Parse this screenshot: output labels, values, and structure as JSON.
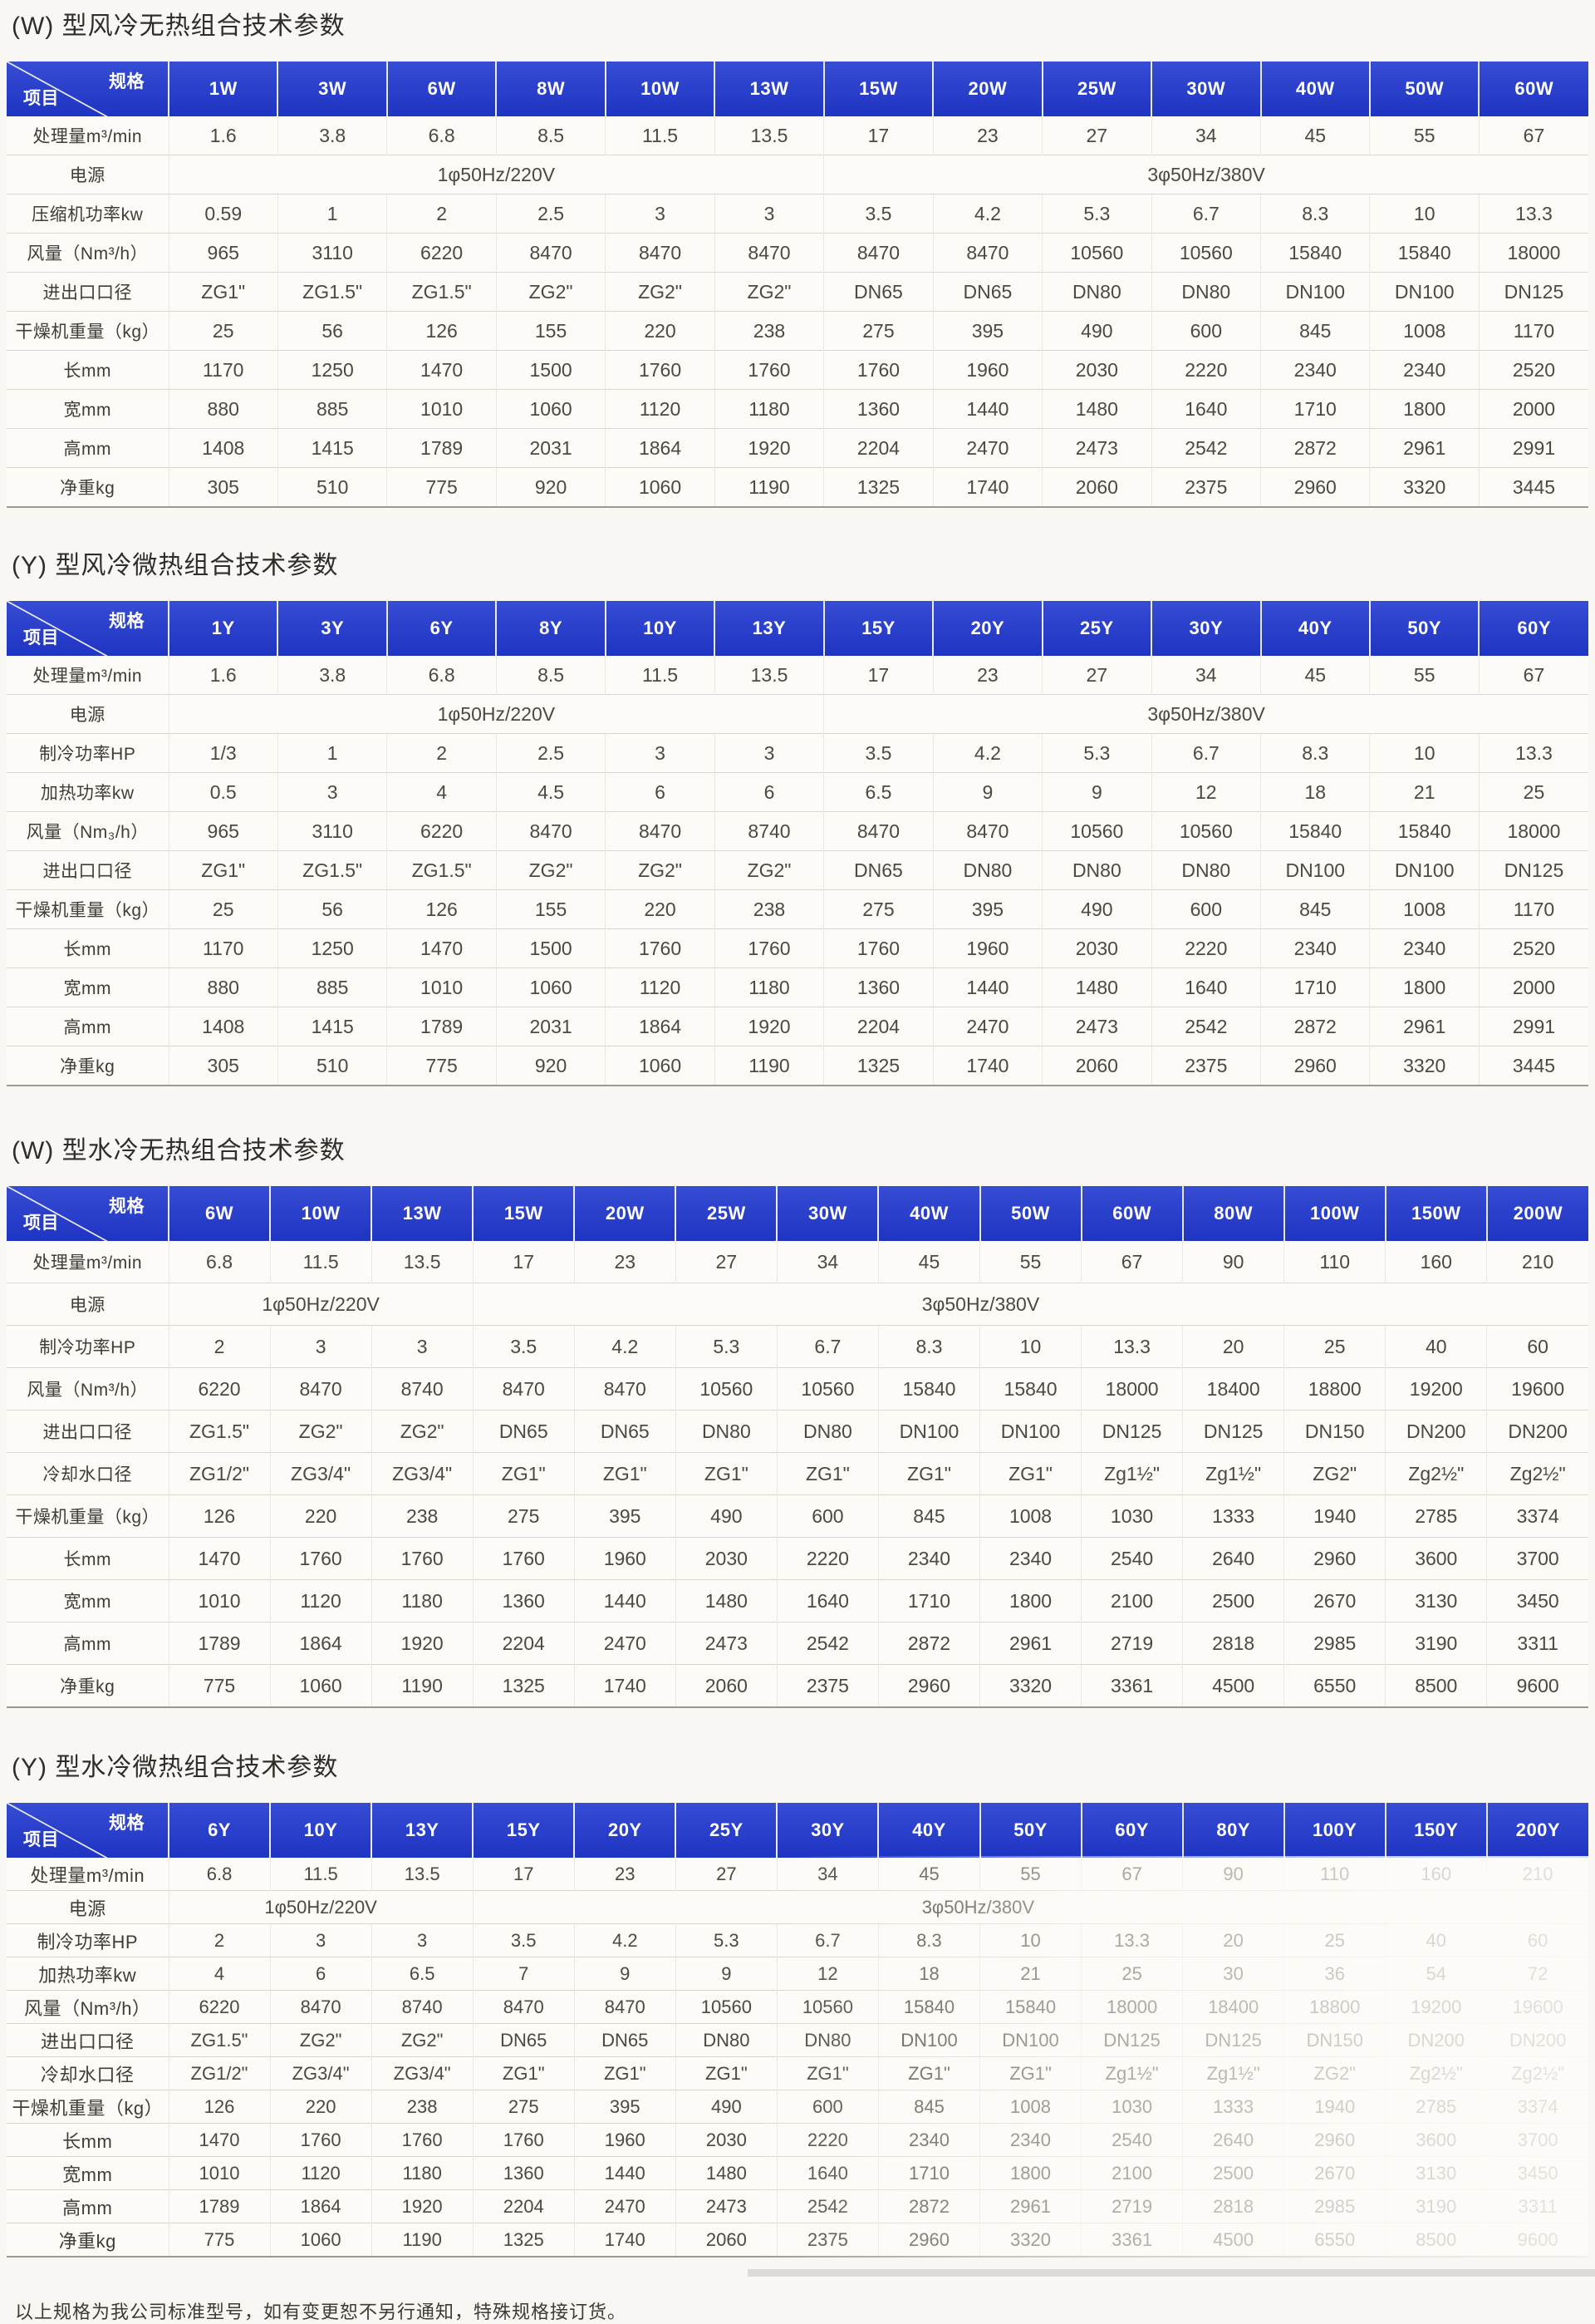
{
  "page": {
    "footer_note": "以上规格为我公司标准型号，如有变更恕不另行通知，特殊规格接订货。",
    "colors": {
      "header_blue": "#2038cf",
      "paper": "#f8f7f3",
      "table_bottom_rule": "#9a9992"
    }
  },
  "tables": [
    {
      "title": "(W) 型风冷无热组合技术参数",
      "corner": {
        "spec": "规格",
        "item": "项目"
      },
      "columns": [
        "1W",
        "3W",
        "6W",
        "8W",
        "10W",
        "13W",
        "15W",
        "20W",
        "25W",
        "30W",
        "40W",
        "50W",
        "60W"
      ],
      "rows": [
        {
          "label": "处理量m³/min",
          "values": [
            1.6,
            3.8,
            6.8,
            8.5,
            11.5,
            13.5,
            17,
            23,
            27,
            34,
            45,
            55,
            67
          ]
        },
        {
          "label": "电源",
          "power": [
            {
              "text": "1φ50Hz/220V",
              "span": 6
            },
            {
              "text": "3φ50Hz/380V",
              "span": 7
            }
          ]
        },
        {
          "label": "压缩机功率kw",
          "values": [
            0.59,
            1,
            2,
            2.5,
            3,
            3,
            3.5,
            4.2,
            5.3,
            6.7,
            8.3,
            10,
            13.3
          ]
        },
        {
          "label": "风量（Nm³/h）",
          "values": [
            965,
            3110,
            6220,
            8470,
            8470,
            8470,
            8470,
            8470,
            10560,
            10560,
            15840,
            15840,
            18000
          ]
        },
        {
          "label": "进出口口径",
          "values": [
            "ZG1\"",
            "ZG1.5\"",
            "ZG1.5\"",
            "ZG2\"",
            "ZG2\"",
            "ZG2\"",
            "DN65",
            "DN65",
            "DN80",
            "DN80",
            "DN100",
            "DN100",
            "DN125"
          ]
        },
        {
          "label": "干燥机重量（kg）",
          "values": [
            25,
            56,
            126,
            155,
            220,
            238,
            275,
            395,
            490,
            600,
            845,
            1008,
            1170
          ]
        },
        {
          "label": "长mm",
          "values": [
            1170,
            1250,
            1470,
            1500,
            1760,
            1760,
            1760,
            1960,
            2030,
            2220,
            2340,
            2340,
            2520
          ]
        },
        {
          "label": "宽mm",
          "values": [
            880,
            885,
            1010,
            1060,
            1120,
            1180,
            1360,
            1440,
            1480,
            1640,
            1710,
            1800,
            2000
          ]
        },
        {
          "label": "高mm",
          "values": [
            1408,
            1415,
            1789,
            2031,
            1864,
            1920,
            2204,
            2470,
            2473,
            2542,
            2872,
            2961,
            2991
          ]
        },
        {
          "label": "净重kg",
          "values": [
            305,
            510,
            775,
            920,
            1060,
            1190,
            1325,
            1740,
            2060,
            2375,
            2960,
            3320,
            3445
          ]
        }
      ]
    },
    {
      "title": "(Y) 型风冷微热组合技术参数",
      "corner": {
        "spec": "规格",
        "item": "项目"
      },
      "columns": [
        "1Y",
        "3Y",
        "6Y",
        "8Y",
        "10Y",
        "13Y",
        "15Y",
        "20Y",
        "25Y",
        "30Y",
        "40Y",
        "50Y",
        "60Y"
      ],
      "rows": [
        {
          "label": "处理量m³/min",
          "values": [
            1.6,
            3.8,
            6.8,
            8.5,
            11.5,
            13.5,
            17,
            23,
            27,
            34,
            45,
            55,
            67
          ]
        },
        {
          "label": "电源",
          "power": [
            {
              "text": "1φ50Hz/220V",
              "span": 6
            },
            {
              "text": "3φ50Hz/380V",
              "span": 7
            }
          ]
        },
        {
          "label": "制冷功率HP",
          "values": [
            "1/3",
            1,
            2,
            2.5,
            3,
            3,
            3.5,
            4.2,
            5.3,
            6.7,
            8.3,
            10,
            13.3
          ]
        },
        {
          "label": "加热功率kw",
          "values": [
            0.5,
            3,
            4,
            4.5,
            6,
            6,
            6.5,
            9,
            9,
            12,
            18,
            21,
            25
          ]
        },
        {
          "label": "风量（Nm₃/h）",
          "values": [
            965,
            3110,
            6220,
            8470,
            8470,
            8740,
            8470,
            8470,
            10560,
            10560,
            15840,
            15840,
            18000
          ]
        },
        {
          "label": "进出口口径",
          "values": [
            "ZG1\"",
            "ZG1.5\"",
            "ZG1.5\"",
            "ZG2\"",
            "ZG2\"",
            "ZG2\"",
            "DN65",
            "DN80",
            "DN80",
            "DN80",
            "DN100",
            "DN100",
            "DN125"
          ]
        },
        {
          "label": "干燥机重量（kg）",
          "values": [
            25,
            56,
            126,
            155,
            220,
            238,
            275,
            395,
            490,
            600,
            845,
            1008,
            1170
          ]
        },
        {
          "label": "长mm",
          "values": [
            1170,
            1250,
            1470,
            1500,
            1760,
            1760,
            1760,
            1960,
            2030,
            2220,
            2340,
            2340,
            2520
          ]
        },
        {
          "label": "宽mm",
          "values": [
            880,
            885,
            1010,
            1060,
            1120,
            1180,
            1360,
            1440,
            1480,
            1640,
            1710,
            1800,
            2000
          ]
        },
        {
          "label": "高mm",
          "values": [
            1408,
            1415,
            1789,
            2031,
            1864,
            1920,
            2204,
            2470,
            2473,
            2542,
            2872,
            2961,
            2991
          ]
        },
        {
          "label": "净重kg",
          "values": [
            305,
            510,
            775,
            920,
            1060,
            1190,
            1325,
            1740,
            2060,
            2375,
            2960,
            3320,
            3445
          ]
        }
      ]
    },
    {
      "title": "(W) 型水冷无热组合技术参数",
      "corner": {
        "spec": "规格",
        "item": "项目"
      },
      "columns": [
        "6W",
        "10W",
        "13W",
        "15W",
        "20W",
        "25W",
        "30W",
        "40W",
        "50W",
        "60W",
        "80W",
        "100W",
        "150W",
        "200W"
      ],
      "rows": [
        {
          "label": "处理量m³/min",
          "values": [
            6.8,
            11.5,
            13.5,
            17,
            23,
            27,
            34,
            45,
            55,
            67,
            90,
            110,
            160,
            210
          ]
        },
        {
          "label": "电源",
          "power": [
            {
              "text": "1φ50Hz/220V",
              "span": 3
            },
            {
              "text": "3φ50Hz/380V",
              "span": 11
            }
          ]
        },
        {
          "label": "制冷功率HP",
          "values": [
            2,
            3,
            3,
            3.5,
            4.2,
            5.3,
            6.7,
            8.3,
            10,
            13.3,
            20,
            25,
            40,
            60
          ]
        },
        {
          "label": "风量（Nm³/h）",
          "values": [
            6220,
            8470,
            8740,
            8470,
            8470,
            10560,
            10560,
            15840,
            15840,
            18000,
            18400,
            18800,
            19200,
            19600
          ]
        },
        {
          "label": "进出口口径",
          "values": [
            "ZG1.5\"",
            "ZG2\"",
            "ZG2\"",
            "DN65",
            "DN65",
            "DN80",
            "DN80",
            "DN100",
            "DN100",
            "DN125",
            "DN125",
            "DN150",
            "DN200",
            "DN200"
          ]
        },
        {
          "label": "冷却水口径",
          "values": [
            "ZG1/2\"",
            "ZG3/4\"",
            "ZG3/4\"",
            "ZG1\"",
            "ZG1\"",
            "ZG1\"",
            "ZG1\"",
            "ZG1\"",
            "ZG1\"",
            "Zg1½\"",
            "Zg1½\"",
            "ZG2\"",
            "Zg2½\"",
            "Zg2½\""
          ]
        },
        {
          "label": "干燥机重量（kg）",
          "values": [
            126,
            220,
            238,
            275,
            395,
            490,
            600,
            845,
            1008,
            1030,
            1333,
            1940,
            2785,
            3374
          ]
        },
        {
          "label": "长mm",
          "values": [
            1470,
            1760,
            1760,
            1760,
            1960,
            2030,
            2220,
            2340,
            2340,
            2540,
            2640,
            2960,
            3600,
            3700
          ]
        },
        {
          "label": "宽mm",
          "values": [
            1010,
            1120,
            1180,
            1360,
            1440,
            1480,
            1640,
            1710,
            1800,
            2100,
            2500,
            2670,
            3130,
            3450
          ]
        },
        {
          "label": "高mm",
          "values": [
            1789,
            1864,
            1920,
            2204,
            2470,
            2473,
            2542,
            2872,
            2961,
            2719,
            2818,
            2985,
            3190,
            3311
          ]
        },
        {
          "label": "净重kg",
          "values": [
            775,
            1060,
            1190,
            1325,
            1740,
            2060,
            2375,
            2960,
            3320,
            3361,
            4500,
            6550,
            8500,
            9600
          ]
        }
      ]
    },
    {
      "title": "(Y) 型水冷微热组合技术参数",
      "corner": {
        "spec": "规格",
        "item": "项目"
      },
      "columns": [
        "6Y",
        "10Y",
        "13Y",
        "15Y",
        "20Y",
        "25Y",
        "30Y",
        "40Y",
        "50Y",
        "60Y",
        "80Y",
        "100Y",
        "150Y",
        "200Y"
      ],
      "rows": [
        {
          "label": "处理量m³/min",
          "values": [
            6.8,
            11.5,
            13.5,
            17,
            23,
            27,
            34,
            45,
            55,
            67,
            90,
            110,
            160,
            210
          ]
        },
        {
          "label": "电源",
          "power": [
            {
              "text": "1φ50Hz/220V",
              "span": 3
            },
            {
              "text": "3φ50Hz/380V",
              "span": 11
            }
          ]
        },
        {
          "label": "制冷功率HP",
          "values": [
            2,
            3,
            3,
            3.5,
            4.2,
            5.3,
            6.7,
            8.3,
            10,
            13.3,
            20,
            25,
            40,
            60
          ]
        },
        {
          "label": "加热功率kw",
          "values": [
            4,
            6,
            6.5,
            7,
            9,
            9,
            12,
            18,
            21,
            25,
            30,
            36,
            54,
            72
          ]
        },
        {
          "label": "风量（Nm³/h）",
          "values": [
            6220,
            8470,
            8740,
            8470,
            8470,
            10560,
            10560,
            15840,
            15840,
            18000,
            18400,
            18800,
            19200,
            19600
          ]
        },
        {
          "label": "进出口口径",
          "values": [
            "ZG1.5\"",
            "ZG2\"",
            "ZG2\"",
            "DN65",
            "DN65",
            "DN80",
            "DN80",
            "DN100",
            "DN100",
            "DN125",
            "DN125",
            "DN150",
            "DN200",
            "DN200"
          ]
        },
        {
          "label": "冷却水口径",
          "values": [
            "ZG1/2\"",
            "ZG3/4\"",
            "ZG3/4\"",
            "ZG1\"",
            "ZG1\"",
            "ZG1\"",
            "ZG1\"",
            "ZG1\"",
            "ZG1\"",
            "Zg1½\"",
            "Zg1½\"",
            "ZG2\"",
            "Zg2½\"",
            "Zg2½\""
          ]
        },
        {
          "label": "干燥机重量（kg）",
          "values": [
            126,
            220,
            238,
            275,
            395,
            490,
            600,
            845,
            1008,
            1030,
            1333,
            1940,
            2785,
            3374
          ]
        },
        {
          "label": "长mm",
          "values": [
            1470,
            1760,
            1760,
            1760,
            1960,
            2030,
            2220,
            2340,
            2340,
            2540,
            2640,
            2960,
            3600,
            3700
          ]
        },
        {
          "label": "宽mm",
          "values": [
            1010,
            1120,
            1180,
            1360,
            1440,
            1480,
            1640,
            1710,
            1800,
            2100,
            2500,
            2670,
            3130,
            3450
          ]
        },
        {
          "label": "高mm",
          "values": [
            1789,
            1864,
            1920,
            2204,
            2470,
            2473,
            2542,
            2872,
            2961,
            2719,
            2818,
            2985,
            3190,
            3311
          ]
        },
        {
          "label": "净重kg",
          "values": [
            775,
            1060,
            1190,
            1325,
            1740,
            2060,
            2375,
            2960,
            3320,
            3361,
            4500,
            6550,
            8500,
            9600
          ]
        }
      ]
    }
  ]
}
